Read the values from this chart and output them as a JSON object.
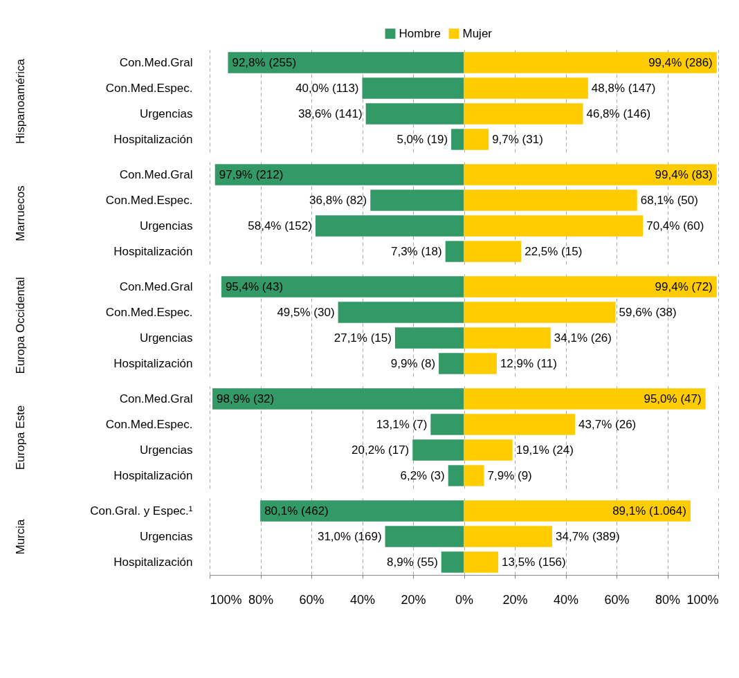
{
  "chart_data": [
    {
      "type": "bar",
      "orientation": "horizontal",
      "ylabel": "Hispanoamérica",
      "categories": [
        "Con.Med.Gral",
        "Con.Med.Espec.",
        "Urgencias",
        "Hospitalización"
      ],
      "xlim": [
        -100,
        100
      ],
      "xticks": [
        -100,
        -80,
        -60,
        -40,
        -20,
        0,
        20,
        40,
        60,
        80,
        100
      ],
      "grid": "x",
      "legend": "top",
      "tick_labels": "y",
      "series": [
        {
          "name": "Hombre",
          "color": "#339966",
          "base": [
            -92.8,
            -40.0,
            -38.6,
            -5.0
          ],
          "values": [
            92.8,
            40.0,
            38.6,
            5.0
          ],
          "value_labels": [
            "92,8% (255)",
            "40,0% (113)",
            "38,6% (141)",
            "5,0% (19)"
          ]
        },
        {
          "name": "Mujer",
          "color": "#ffcc00",
          "values": [
            99.4,
            48.8,
            46.8,
            9.7
          ],
          "value_labels": [
            "99,4% (286)",
            "48,8% (147)",
            "46,8% (146)",
            "9,7% (31)"
          ]
        }
      ]
    },
    {
      "type": "bar",
      "orientation": "horizontal",
      "ylabel": "Marruecos",
      "categories": [
        "Con.Med.Gral",
        "Con.Med.Espec.",
        "Urgencias",
        "Hospitalización"
      ],
      "xlim": [
        -100,
        100
      ],
      "xticks": [
        -100,
        -80,
        -60,
        -40,
        -20,
        0,
        20,
        40,
        60,
        80,
        100
      ],
      "grid": "x",
      "tick_labels": "y",
      "series": [
        {
          "color": "#339966",
          "base": [
            -97.9,
            -36.8,
            -58.4,
            -7.3
          ],
          "values": [
            97.9,
            36.8,
            58.4,
            7.3
          ],
          "value_labels": [
            "97,9% (212)",
            "36,8% (82)",
            "58,4% (152)",
            "7,3% (18)"
          ]
        },
        {
          "color": "#ffcc00",
          "values": [
            99.4,
            68.1,
            70.4,
            22.5
          ],
          "value_labels": [
            "99,4% (83)",
            "68,1% (50)",
            "70,4% (60)",
            "22,5% (15)"
          ]
        }
      ]
    },
    {
      "type": "bar",
      "orientation": "horizontal",
      "ylabel": "Europa Occidental",
      "categories": [
        "Con.Med.Gral",
        "Con.Med.Espec.",
        "Urgencias",
        "Hospitalización"
      ],
      "xlim": [
        -100,
        100
      ],
      "xticks": [
        -100,
        -80,
        -60,
        -40,
        -20,
        0,
        20,
        40,
        60,
        80,
        100
      ],
      "grid": "x",
      "tick_labels": "y",
      "series": [
        {
          "color": "#339966",
          "base": [
            -95.4,
            -49.5,
            -27.1,
            -9.9
          ],
          "values": [
            95.4,
            49.5,
            27.1,
            9.9
          ],
          "value_labels": [
            "95,4% (43)",
            "49,5% (30)",
            "27,1% (15)",
            "9,9% (8)"
          ]
        },
        {
          "color": "#ffcc00",
          "values": [
            99.4,
            59.6,
            34.1,
            12.9
          ],
          "value_labels": [
            "99,4% (72)",
            "59,6% (38)",
            "34,1% (26)",
            "12,9% (11)"
          ]
        }
      ]
    },
    {
      "type": "bar",
      "orientation": "horizontal",
      "ylabel": "Europa Este",
      "categories": [
        "Con.Med.Gral",
        "Con.Med.Espec.",
        "Urgencias",
        "Hospitalización"
      ],
      "xlim": [
        -100,
        100
      ],
      "xticks": [
        -100,
        -80,
        -60,
        -40,
        -20,
        0,
        20,
        40,
        60,
        80,
        100
      ],
      "grid": "x",
      "tick_labels": "y",
      "series": [
        {
          "color": "#339966",
          "base": [
            -98.9,
            -13.1,
            -20.2,
            -6.2
          ],
          "values": [
            98.9,
            13.1,
            20.2,
            6.2
          ],
          "value_labels": [
            "98,9% (32)",
            "13,1% (7)",
            "20,2% (17)",
            "6,2% (3)"
          ]
        },
        {
          "color": "#ffcc00",
          "values": [
            95.0,
            43.7,
            19.1,
            7.9
          ],
          "value_labels": [
            "95,0% (47)",
            "43,7% (26)",
            "19,1% (24)",
            "7,9% (9)"
          ]
        }
      ]
    },
    {
      "type": "bar",
      "orientation": "horizontal",
      "ylabel": "Murcia",
      "categories": [
        "Con.Gral. y Espec.¹",
        "Urgencias",
        "Hospitalización"
      ],
      "xlim": [
        -100,
        100
      ],
      "xticks": [
        {
          "value": -100,
          "label": "100%"
        },
        {
          "value": -80,
          "label": "80%"
        },
        {
          "value": -60,
          "label": "60%"
        },
        {
          "value": -40,
          "label": "40%"
        },
        {
          "value": -20,
          "label": "20%"
        },
        {
          "value": 0,
          "label": "0%"
        },
        {
          "value": 20,
          "label": "20%"
        },
        {
          "value": 40,
          "label": "40%"
        },
        {
          "value": 60,
          "label": "60%"
        },
        {
          "value": 80,
          "label": "80%"
        },
        {
          "value": 100,
          "label": "100%"
        }
      ],
      "grid": "x",
      "series": [
        {
          "color": "#339966",
          "base": [
            -80.1,
            -31.0,
            -8.9
          ],
          "values": [
            80.1,
            31.0,
            8.9
          ],
          "value_labels": [
            "80,1% (462)",
            "31,0% (169)",
            "8,9% (55)"
          ]
        },
        {
          "color": "#ffcc00",
          "values": [
            89.1,
            34.7,
            13.5
          ],
          "value_labels": [
            "89,1% (1.064)",
            "34,7% (389)",
            "13,5% (156)"
          ]
        }
      ]
    }
  ]
}
